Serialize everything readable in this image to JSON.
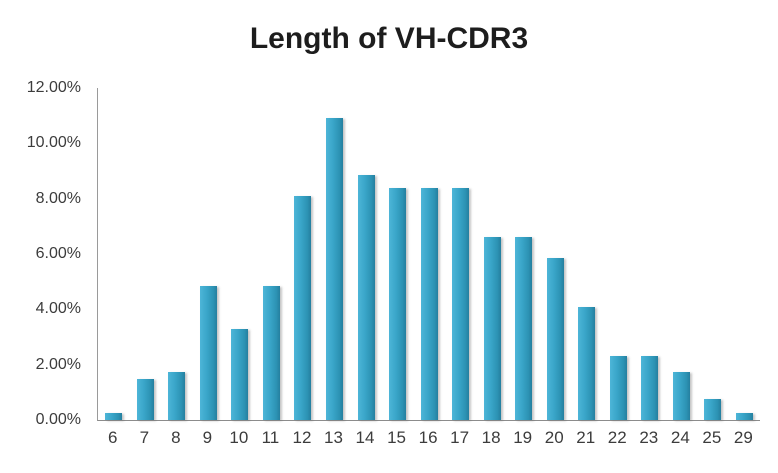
{
  "chart_data": {
    "type": "bar",
    "title": "Length of VH-CDR3",
    "xlabel": "",
    "ylabel": "",
    "categories": [
      "6",
      "7",
      "8",
      "9",
      "10",
      "11",
      "12",
      "13",
      "14",
      "15",
      "16",
      "17",
      "18",
      "19",
      "20",
      "21",
      "22",
      "23",
      "24",
      "25",
      "29"
    ],
    "values": [
      0.25,
      1.5,
      1.75,
      4.85,
      3.3,
      4.85,
      8.1,
      10.9,
      8.85,
      8.4,
      8.4,
      8.4,
      6.6,
      6.6,
      5.85,
      4.1,
      2.3,
      2.3,
      1.75,
      0.75,
      0.25
    ],
    "y_ticks": [
      "12.00%",
      "10.00%",
      "8.00%",
      "6.00%",
      "4.00%",
      "2.00%",
      "0.00%"
    ],
    "ylim": [
      0,
      12
    ],
    "grid": false,
    "legend": false,
    "colors": {
      "bar_gradient_left": "#4db5d8",
      "bar_gradient_right": "#257f9f",
      "axis_line": "#8c8c8c",
      "tick_text": "#3c3c3c",
      "title_text": "#1d1d1d",
      "background": "#ffffff"
    }
  }
}
